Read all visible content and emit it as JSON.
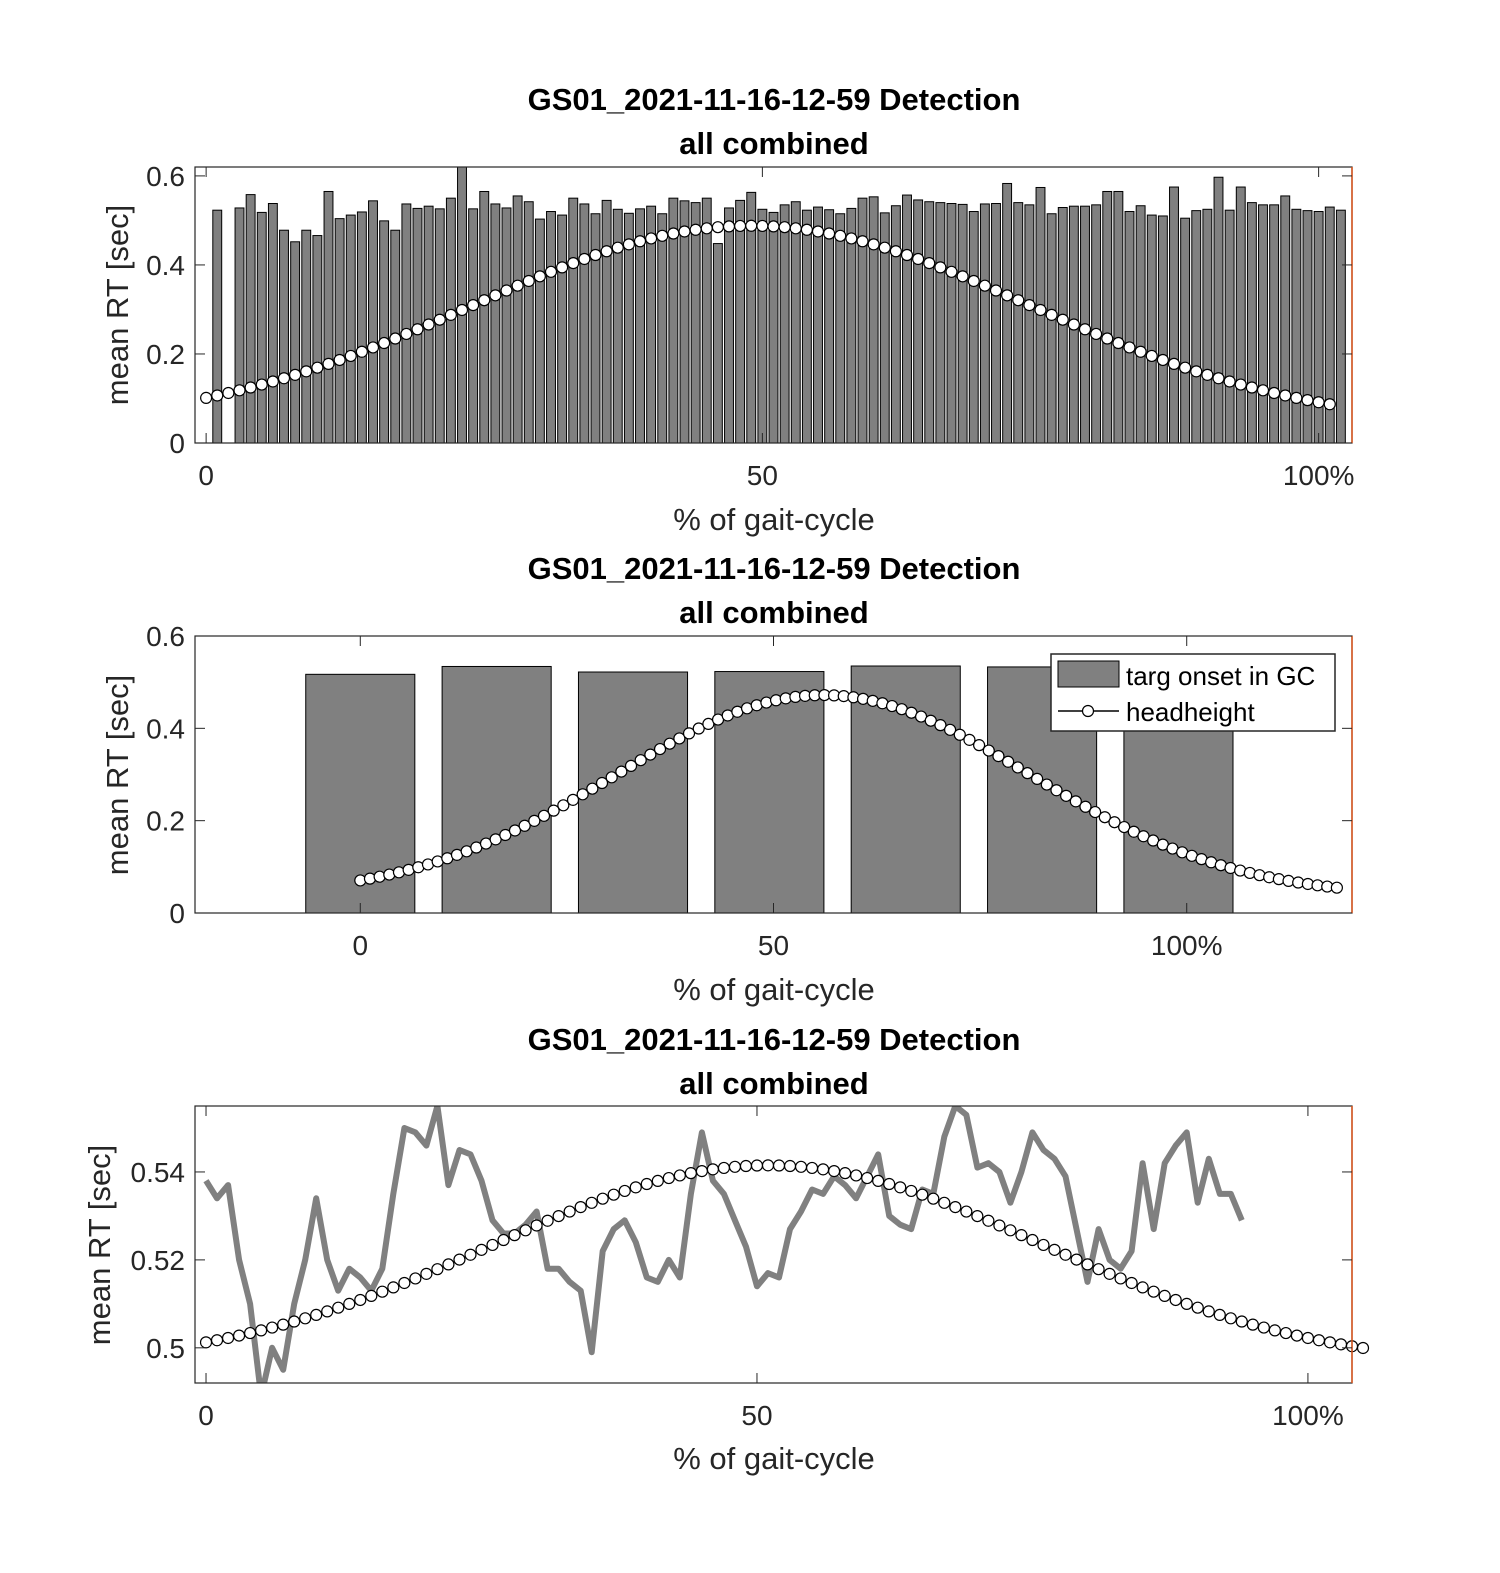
{
  "colors": {
    "bar": "#808080",
    "line": "#808080",
    "marker_face": "#ffffff",
    "marker_edge": "#000000",
    "axis": "#262626",
    "right_edge": "#d95319"
  },
  "chart_data": [
    {
      "type": "bar",
      "title": "GS01_2021-11-16-12-59 Detection",
      "subtitle": "all combined",
      "xlabel": "% of gait-cycle",
      "ylabel": "mean RT [sec]",
      "xlim": [
        -1,
        103
      ],
      "ylim": [
        0,
        0.62
      ],
      "xticks": [
        0,
        50,
        100
      ],
      "xticklabels": [
        "0",
        "50",
        "100%"
      ],
      "yticks": [
        0,
        0.2,
        0.4,
        0.6
      ],
      "yticklabels": [
        "0",
        "0.2",
        "0.4",
        "0.6"
      ],
      "bar_width": 0.8,
      "bars": {
        "name": "targ onset in GC",
        "x": [
          1,
          3,
          4,
          5,
          6,
          7,
          8,
          9,
          10,
          11,
          12,
          13,
          14,
          15,
          16,
          17,
          18,
          19,
          20,
          21,
          22,
          23,
          24,
          25,
          26,
          27,
          28,
          29,
          30,
          31,
          32,
          33,
          34,
          35,
          36,
          37,
          38,
          39,
          40,
          41,
          42,
          43,
          44,
          45,
          46,
          47,
          48,
          49,
          50,
          51,
          52,
          53,
          54,
          55,
          56,
          57,
          58,
          59,
          60,
          61,
          62,
          63,
          64,
          65,
          66,
          67,
          68,
          69,
          70,
          71,
          72,
          73,
          74,
          75,
          76,
          77,
          78,
          79,
          80,
          81,
          82,
          83,
          84,
          85,
          86,
          87,
          88,
          89,
          90,
          91,
          92,
          93,
          94,
          95,
          96,
          97,
          98,
          99,
          100,
          101,
          102
        ],
        "values": [
          0.523,
          0.528,
          0.558,
          0.518,
          0.538,
          0.478,
          0.452,
          0.478,
          0.466,
          0.565,
          0.504,
          0.512,
          0.519,
          0.544,
          0.499,
          0.478,
          0.537,
          0.527,
          0.532,
          0.526,
          0.55,
          0.62,
          0.526,
          0.565,
          0.537,
          0.528,
          0.555,
          0.542,
          0.503,
          0.52,
          0.512,
          0.55,
          0.537,
          0.515,
          0.545,
          0.525,
          0.516,
          0.526,
          0.532,
          0.515,
          0.55,
          0.544,
          0.54,
          0.55,
          0.448,
          0.528,
          0.545,
          0.563,
          0.525,
          0.518,
          0.535,
          0.542,
          0.523,
          0.53,
          0.524,
          0.515,
          0.527,
          0.55,
          0.553,
          0.517,
          0.533,
          0.557,
          0.546,
          0.542,
          0.54,
          0.538,
          0.536,
          0.52,
          0.537,
          0.538,
          0.583,
          0.54,
          0.535,
          0.574,
          0.515,
          0.529,
          0.532,
          0.532,
          0.535,
          0.565,
          0.565,
          0.52,
          0.533,
          0.512,
          0.51,
          0.575,
          0.505,
          0.522,
          0.525,
          0.597,
          0.523,
          0.575,
          0.54,
          0.535,
          0.535,
          0.555,
          0.525,
          0.522,
          0.52,
          0.53,
          0.523
        ]
      },
      "line": {
        "name": "headheight",
        "x_start": 0,
        "x_step": 1,
        "count": 102,
        "y_min": 0.035,
        "y_max": 0.488,
        "peak_x": 49,
        "width": 25
      }
    },
    {
      "type": "bar",
      "title": "GS01_2021-11-16-12-59 Detection",
      "subtitle": "all combined",
      "xlabel": "% of gait-cycle",
      "ylabel": "mean RT [sec]",
      "xlim": [
        -20,
        120
      ],
      "ylim": [
        0,
        0.6
      ],
      "xticks": [
        0,
        50,
        100
      ],
      "xticklabels": [
        "0",
        "50",
        "100%"
      ],
      "yticks": [
        0,
        0.2,
        0.4,
        0.6
      ],
      "yticklabels": [
        "0",
        "0.2",
        "0.4",
        "0.6"
      ],
      "bar_width": 13.2,
      "bars": {
        "name": "targ onset in GC",
        "x": [
          0,
          16.5,
          33,
          49.5,
          66,
          82.5,
          99
        ],
        "values": [
          0.517,
          0.534,
          0.522,
          0.523,
          0.535,
          0.533,
          0.527
        ]
      },
      "line": {
        "name": "headheight",
        "x_start": 0,
        "x_step": 1.17,
        "count": 102,
        "y_min": 0.035,
        "y_max": 0.472,
        "peak_x": 56,
        "width": 25
      },
      "legend": {
        "position": "top-right",
        "entries": [
          "targ onset in GC",
          "headheight"
        ]
      }
    },
    {
      "type": "line",
      "title": "GS01_2021-11-16-12-59 Detection",
      "subtitle": "all combined",
      "xlabel": "% of gait-cycle",
      "ylabel": "mean RT [sec]",
      "xlim": [
        -1,
        104
      ],
      "ylim": [
        0.492,
        0.555
      ],
      "xticks": [
        0,
        50,
        100
      ],
      "xticklabels": [
        "0",
        "50",
        "100%"
      ],
      "yticks": [
        0.5,
        0.52,
        0.54
      ],
      "yticklabels": [
        "0.5",
        "0.52",
        "0.54"
      ],
      "series": [
        {
          "name": "targ onset in GC",
          "x_start": 0,
          "x_step": 1,
          "values": [
            0.538,
            0.534,
            0.537,
            0.52,
            0.51,
            0.489,
            0.5,
            0.495,
            0.51,
            0.52,
            0.534,
            0.52,
            0.513,
            0.518,
            0.516,
            0.513,
            0.518,
            0.535,
            0.55,
            0.549,
            0.546,
            0.555,
            0.537,
            0.545,
            0.544,
            0.538,
            0.529,
            0.526,
            0.526,
            0.528,
            0.531,
            0.518,
            0.518,
            0.515,
            0.513,
            0.499,
            0.522,
            0.527,
            0.529,
            0.524,
            0.516,
            0.515,
            0.52,
            0.516,
            0.535,
            0.549,
            0.538,
            0.535,
            0.529,
            0.523,
            0.514,
            0.517,
            0.516,
            0.527,
            0.531,
            0.536,
            0.535,
            0.539,
            0.537,
            0.534,
            0.539,
            0.544,
            0.53,
            0.528,
            0.527,
            0.536,
            0.535,
            0.548,
            0.555,
            0.553,
            0.541,
            0.542,
            0.54,
            0.533,
            0.54,
            0.549,
            0.545,
            0.543,
            0.539,
            0.527,
            0.515,
            0.527,
            0.52,
            0.518,
            0.522,
            0.542,
            0.527,
            0.542,
            0.546,
            0.549,
            0.533,
            0.543,
            0.535,
            0.535,
            0.529
          ]
        }
      ],
      "line": {
        "name": "headheight",
        "x_start": 0,
        "x_step": 1,
        "count": 106,
        "y_min": 0.4955,
        "y_max": 0.5415,
        "peak_x": 51,
        "width": 25
      }
    }
  ]
}
